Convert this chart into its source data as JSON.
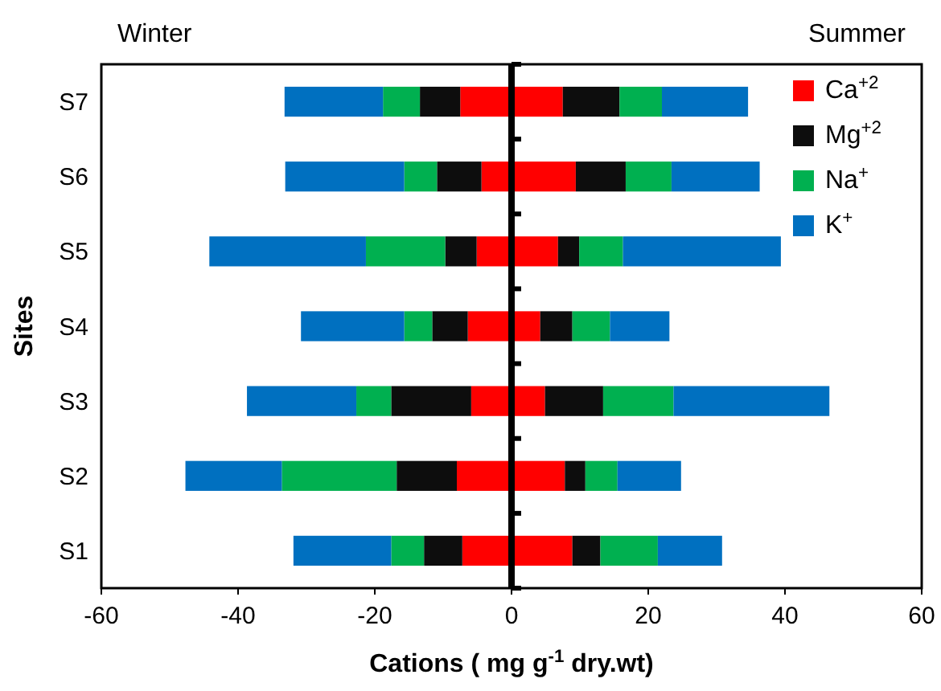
{
  "chart_data": {
    "type": "bar",
    "orientation": "horizontal",
    "stacked": true,
    "xlabel": "Cations ( mg g$^{-1}$ dry.wt)",
    "ylabel": "Sites",
    "annotations": [
      "Winter",
      "Summer"
    ],
    "categories": [
      "S7",
      "S6",
      "S5",
      "S4",
      "S3",
      "S2",
      "S1"
    ],
    "xlim": [
      -60,
      60
    ],
    "xticks": [
      -60,
      -40,
      -20,
      0,
      20,
      40,
      60
    ],
    "legend": "top right",
    "series": [
      {
        "name": "Ca$^{+2}$",
        "color": "#ff0000",
        "values": [
          7.5,
          9.4,
          6.8,
          4.2,
          4.9,
          7.8,
          8.9
        ]
      },
      {
        "color": "#ff0000",
        "values": [
          -7.5,
          -4.4,
          -5.1,
          -6.4,
          -5.9,
          -8.0,
          -7.2
        ]
      },
      {
        "name": "Mg$^{+2}$",
        "color": "#0d0d0d",
        "values": [
          8.3,
          7.3,
          3.1,
          4.7,
          8.5,
          3.0,
          4.1
        ]
      },
      {
        "color": "#0d0d0d",
        "values": [
          -5.9,
          -6.5,
          -4.6,
          -5.2,
          -11.7,
          -8.8,
          -5.6
        ]
      },
      {
        "name": "Na$^{+}$",
        "color": "#00b050",
        "values": [
          6.2,
          6.7,
          6.4,
          5.5,
          10.3,
          4.7,
          8.4
        ]
      },
      {
        "color": "#00b050",
        "values": [
          -5.4,
          -4.8,
          -11.6,
          -4.1,
          -5.1,
          -16.8,
          -4.8
        ]
      },
      {
        "name": "K$^{+}$",
        "color": "#0070c0",
        "values": [
          12.6,
          12.9,
          23.1,
          8.7,
          22.8,
          9.3,
          9.4
        ]
      },
      {
        "color": "#0070c0",
        "values": [
          -14.4,
          -17.4,
          -22.9,
          -15.1,
          -16.0,
          -14.1,
          -14.3
        ]
      }
    ]
  }
}
